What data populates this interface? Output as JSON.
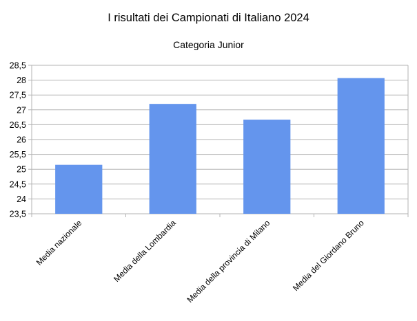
{
  "chart_data": {
    "type": "bar",
    "title": "I risultati dei Campionati di Italiano 2024",
    "subtitle": "Categoria Junior",
    "xlabel": "",
    "ylabel": "",
    "categories": [
      "Media nazionale",
      "Media della Lombardia",
      "Media della provincia di Milano",
      "Media del Giordano Bruno"
    ],
    "values": [
      25.15,
      27.2,
      26.67,
      28.07
    ],
    "ylim": [
      23.5,
      28.5
    ],
    "yticks": [
      "23,5",
      "24",
      "24,5",
      "25",
      "25,5",
      "26",
      "26,5",
      "27",
      "27,5",
      "28",
      "28,5"
    ],
    "grid": true,
    "legend": "none",
    "bar_color": "#6495ED",
    "grid_color": "#b3b3b3"
  }
}
